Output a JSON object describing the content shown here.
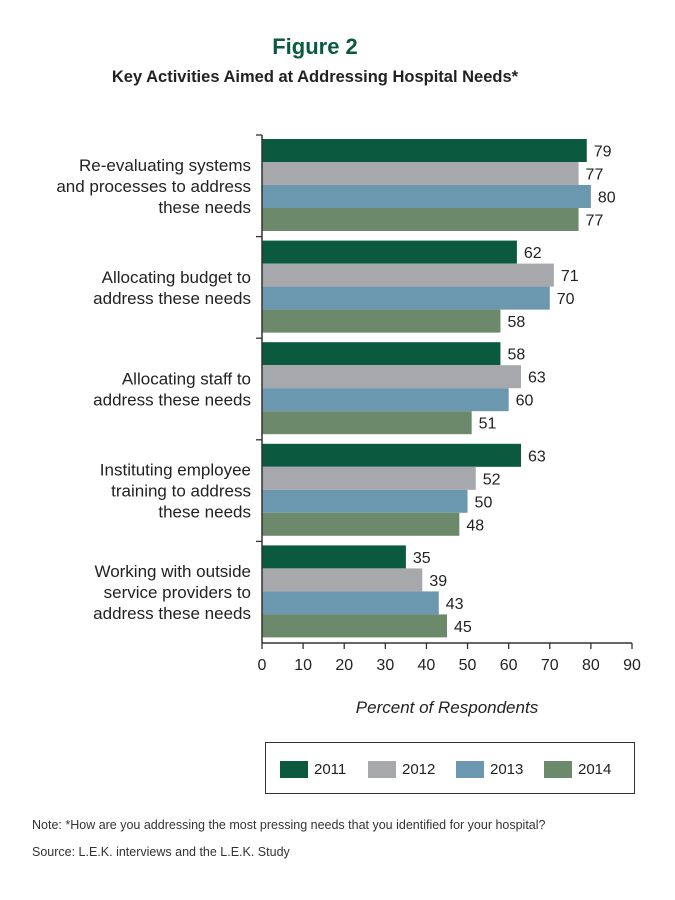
{
  "figure_label": "Figure 2",
  "title": "Key Activities Aimed at Addressing Hospital Needs*",
  "chart_data": {
    "type": "bar",
    "orientation": "horizontal",
    "categories": [
      [
        "Re-evaluating systems",
        "and processes to address",
        "these needs"
      ],
      [
        "Allocating budget to",
        "address these needs"
      ],
      [
        "Allocating staff to",
        "address these needs"
      ],
      [
        "Instituting employee",
        "training to address",
        "these needs"
      ],
      [
        "Working with outside",
        "service providers to",
        "address these needs"
      ]
    ],
    "series": [
      {
        "name": "2011",
        "color": "#0b5a40",
        "values": [
          79,
          62,
          58,
          63,
          35
        ]
      },
      {
        "name": "2012",
        "color": "#a7a8ac",
        "values": [
          77,
          71,
          63,
          52,
          39
        ]
      },
      {
        "name": "2013",
        "color": "#6b98ae",
        "values": [
          80,
          70,
          60,
          50,
          43
        ]
      },
      {
        "name": "2014",
        "color": "#6c8a6b",
        "values": [
          77,
          58,
          51,
          48,
          45
        ]
      }
    ],
    "xlabel": "Percent of Respondents",
    "xlim": [
      0,
      90
    ],
    "xticks": [
      0,
      10,
      20,
      30,
      40,
      50,
      60,
      70,
      80,
      90
    ],
    "grid": false,
    "legend_position": "bottom"
  },
  "note": "Note: *How are you addressing the most pressing needs that you identified for your hospital?",
  "source": "Source: L.E.K. interviews and the L.E.K. Study"
}
